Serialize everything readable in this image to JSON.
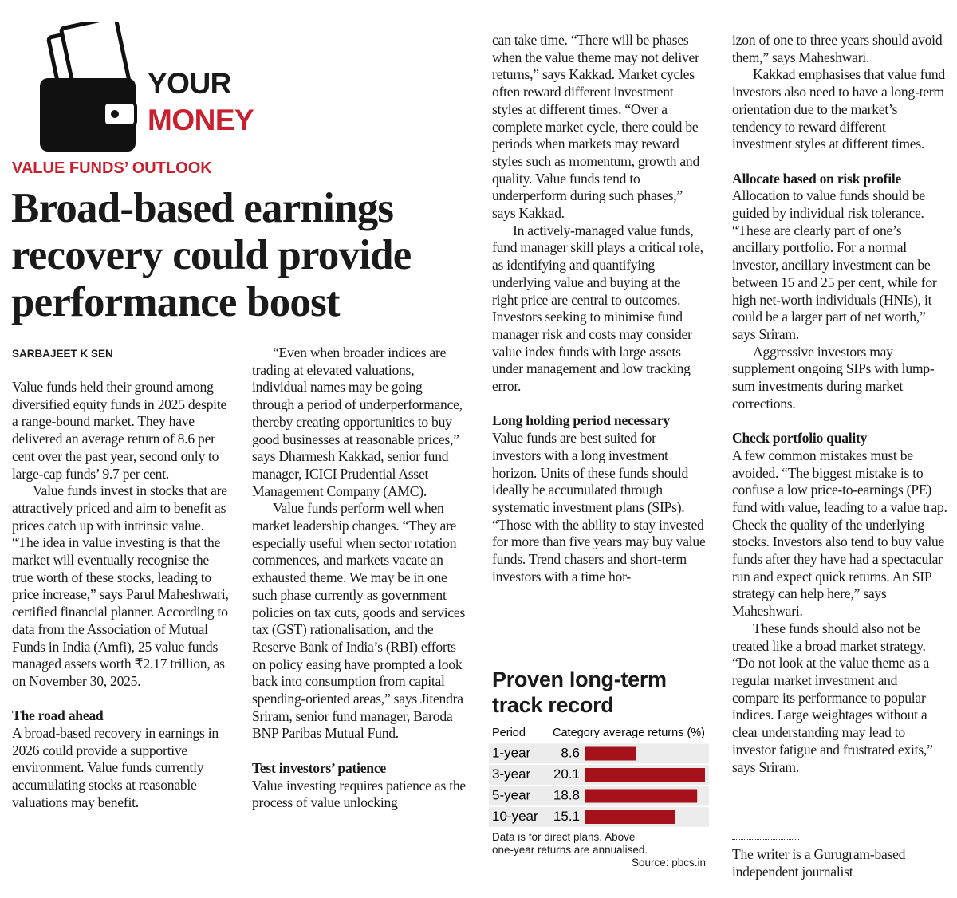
{
  "header": {
    "section": [
      "YOUR",
      "MONEY"
    ],
    "kicker": "VALUE FUNDS’ OUTLOOK",
    "headline": [
      "Broad-based earnings",
      "recovery could provide",
      "performance boost"
    ],
    "byline": "SARBAJEET K SEN"
  },
  "columns": [
    [
      {
        "paragraphs": [
          "Value funds held their ground among diversified equity funds in 2025 despite a range-bound market. They have delivered an average return of 8.6 per cent over the past year, second only to large-cap funds’ 9.7 per cent.",
          "Value funds invest in stocks that are attractively priced and aim to benefit as prices catch up with intrinsic value. “The idea in value investing is that the market will eventually recognise the true worth of these stocks, leading to price increase,” says Parul Maheshwari, certified financial planner. According to data from the Association of Mutual Funds in India (Amfi), 25 value funds managed assets worth ₹2.17 trillion, as on November 30, 2025."
        ]
      },
      {
        "heading": "The road ahead",
        "paragraphs": [
          "A broad-based recovery in earnings in 2026 could provide a supportive environment. Value funds currently accumulating stocks at reasonable valuations may benefit."
        ]
      }
    ],
    [
      {
        "paragraphs": [
          "“Even when broader indices are trading at elevated valuations, individual names may be going through a period of underperformance, thereby creating opportunities to buy good businesses at reasonable prices,” says Dharmesh Kakkad, senior fund manager, ICICI Prudential Asset Management Company (AMC).",
          "Value funds perform well when market leadership changes. “They are especially useful when sector rotation commences, and markets vacate an exhausted theme. We may be in one such phase currently as government policies on tax cuts, goods and services tax (GST) rationalisation, and the Reserve Bank of India’s (RBI) efforts on policy easing have prompted a look back into consumption from capital spending-oriented areas,” says Jitendra Sriram, senior fund manager, Baroda BNP Paribas Mutual Fund."
        ]
      },
      {
        "heading": "Test investors’ patience",
        "paragraphs": [
          "Value investing requires patience as the process of value unlocking"
        ]
      }
    ],
    [
      {
        "paragraphs": [
          "can take time. “There will be phases when the value theme may not deliver returns,” says Kakkad. Market cycles often reward different investment styles at different times. “Over a complete market cycle, there could be periods when markets may reward styles such as momentum, growth and quality. Value funds tend to underperform during such phases,” says Kakkad.",
          "In actively-managed value funds, fund manager skill plays a critical role, as identifying and quantifying underlying value and buying at the right price are central to outcomes. Investors seeking to minimise fund manager risk and costs may consider value index funds with large assets under management and low tracking error."
        ]
      },
      {
        "heading": "Long holding period necessary",
        "paragraphs": [
          "Value funds are best suited for investors with a long investment horizon. Units of these funds should ideally be accumulated through systematic investment plans (SIPs). “Those with the ability to stay invested for more than five years may buy value funds. Trend chasers and short-term investors with a time hor-"
        ]
      }
    ],
    [
      {
        "paragraphs": [
          "izon of one to three years should avoid them,” says Maheshwari.",
          "Kakkad emphasises that value fund investors also need to have a long-term orientation due to the market’s tendency to reward different investment styles at different times."
        ]
      },
      {
        "heading": "Allocate based on risk profile",
        "paragraphs": [
          "Allocation to value funds should be guided by individual risk tolerance. “These are clearly part of one’s ancillary portfolio. For a normal investor, ancillary investment can be between 15 and 25 per cent, while for high net-worth individuals (HNIs), it could be a larger part of net worth,” says Sriram.",
          "Aggressive investors may supplement ongoing SIPs with lump-sum investments during market corrections."
        ]
      },
      {
        "heading": "Check portfolio quality",
        "paragraphs": [
          "A few common mistakes must be avoided. “The biggest mistake is to confuse a low price-to-earnings (PE) fund with value, leading to a value trap. Check the quality of the underlying stocks. Investors also tend to buy value funds after they have had a spectacular run and expect quick returns. An SIP strategy can help here,” says Maheshwari.",
          "These funds should also not be treated like a broad market strategy. “Do not look at the value theme as a regular market investment and compare its performance to popular indices. Large weightages without a clear understanding may lead to investor fatigue and frustrated exits,” says Sriram."
        ]
      }
    ]
  ],
  "chart_data": {
    "type": "bar",
    "title": "Proven long-term track record",
    "column_headers": [
      "Period",
      "Category average returns (%)"
    ],
    "categories": [
      "1-year",
      "3-year",
      "5-year",
      "10-year"
    ],
    "values": [
      8.6,
      20.1,
      18.8,
      15.1
    ],
    "color": "#a5121c",
    "notes": "Data is for direct plans. Above one-year returns are annualised.",
    "source": "Source: pbcs.in"
  },
  "footer": "The writer is a Gurugram-based independent journalist"
}
